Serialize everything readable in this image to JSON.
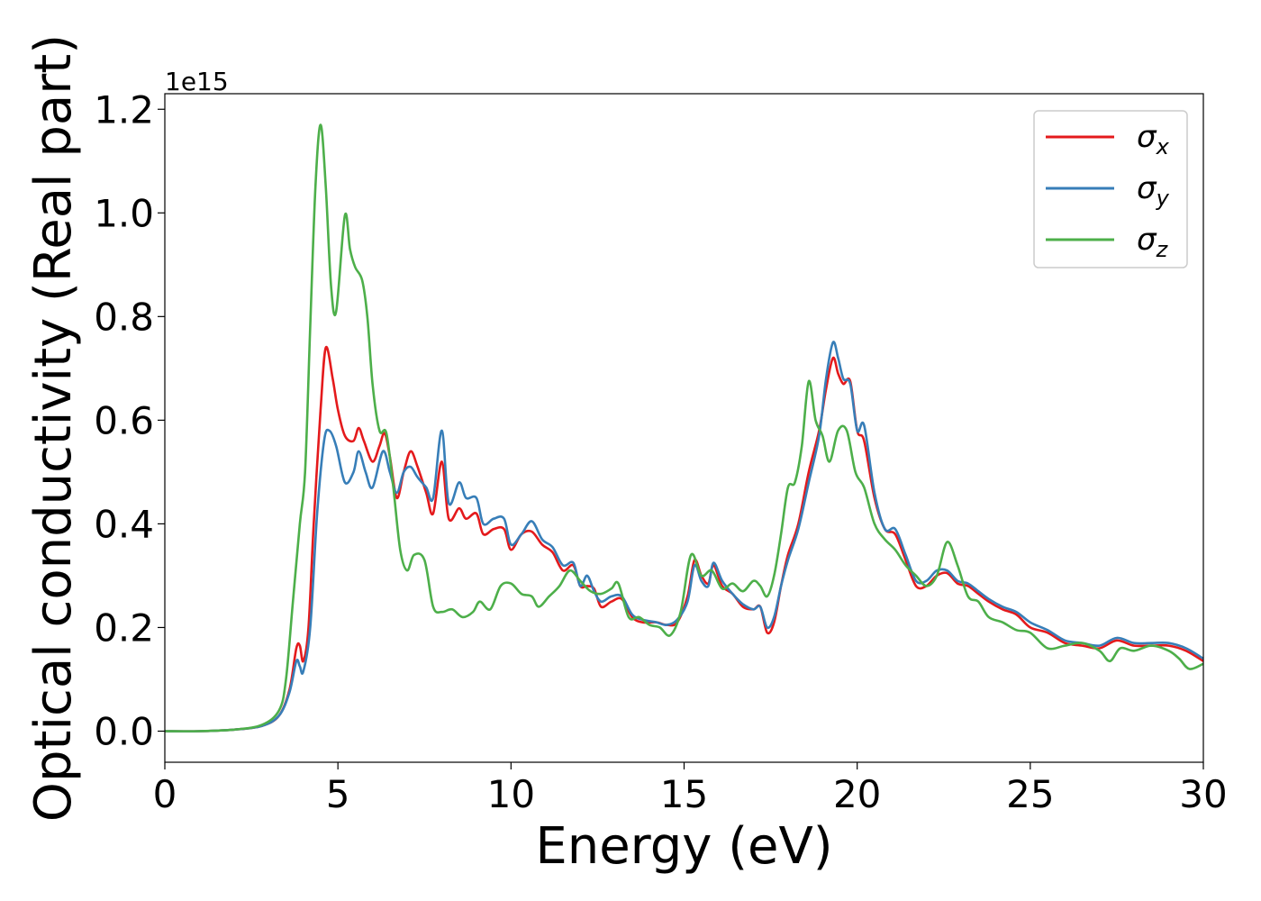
{
  "chart_data": {
    "type": "line",
    "title": "",
    "xlabel": "Energy (eV)",
    "ylabel": "Optical conductivity (Real part)",
    "y_offset_label": "1e15",
    "xlim": [
      0,
      30
    ],
    "ylim": [
      -0.06,
      1.23
    ],
    "x_ticks": [
      0,
      5,
      10,
      15,
      20,
      25,
      30
    ],
    "x_tick_labels": [
      "0",
      "5",
      "10",
      "15",
      "20",
      "25",
      "30"
    ],
    "y_ticks": [
      0.0,
      0.2,
      0.4,
      0.6,
      0.8,
      1.0,
      1.2
    ],
    "y_tick_labels": [
      "0.0",
      "0.2",
      "0.4",
      "0.6",
      "0.8",
      "1.0",
      "1.2"
    ],
    "grid": false,
    "legend_position": "top-right",
    "series": [
      {
        "name": "σx",
        "sym": "σ",
        "sub": "x",
        "color": "#e41a1c",
        "points": [
          [
            0,
            0
          ],
          [
            1,
            0
          ],
          [
            2,
            0.003
          ],
          [
            2.8,
            0.01
          ],
          [
            3.3,
            0.03
          ],
          [
            3.6,
            0.08
          ],
          [
            3.8,
            0.16
          ],
          [
            3.9,
            0.165
          ],
          [
            4.0,
            0.135
          ],
          [
            4.15,
            0.2
          ],
          [
            4.3,
            0.4
          ],
          [
            4.5,
            0.62
          ],
          [
            4.65,
            0.74
          ],
          [
            4.85,
            0.68
          ],
          [
            5.0,
            0.62
          ],
          [
            5.2,
            0.57
          ],
          [
            5.45,
            0.56
          ],
          [
            5.6,
            0.585
          ],
          [
            5.75,
            0.56
          ],
          [
            6.0,
            0.52
          ],
          [
            6.2,
            0.55
          ],
          [
            6.35,
            0.575
          ],
          [
            6.5,
            0.53
          ],
          [
            6.7,
            0.45
          ],
          [
            6.9,
            0.5
          ],
          [
            7.1,
            0.54
          ],
          [
            7.3,
            0.51
          ],
          [
            7.55,
            0.46
          ],
          [
            7.75,
            0.42
          ],
          [
            8.0,
            0.52
          ],
          [
            8.2,
            0.41
          ],
          [
            8.5,
            0.43
          ],
          [
            8.7,
            0.41
          ],
          [
            9.0,
            0.42
          ],
          [
            9.2,
            0.38
          ],
          [
            9.5,
            0.39
          ],
          [
            9.8,
            0.39
          ],
          [
            10.0,
            0.35
          ],
          [
            10.3,
            0.38
          ],
          [
            10.6,
            0.385
          ],
          [
            10.9,
            0.36
          ],
          [
            11.2,
            0.345
          ],
          [
            11.5,
            0.31
          ],
          [
            11.8,
            0.32
          ],
          [
            12.0,
            0.28
          ],
          [
            12.2,
            0.28
          ],
          [
            12.4,
            0.275
          ],
          [
            12.6,
            0.24
          ],
          [
            12.9,
            0.25
          ],
          [
            13.2,
            0.255
          ],
          [
            13.5,
            0.22
          ],
          [
            13.8,
            0.21
          ],
          [
            14.2,
            0.21
          ],
          [
            14.5,
            0.205
          ],
          [
            14.8,
            0.21
          ],
          [
            15.1,
            0.26
          ],
          [
            15.3,
            0.33
          ],
          [
            15.5,
            0.3
          ],
          [
            15.7,
            0.285
          ],
          [
            15.85,
            0.32
          ],
          [
            16.1,
            0.28
          ],
          [
            16.4,
            0.265
          ],
          [
            16.7,
            0.24
          ],
          [
            17.0,
            0.235
          ],
          [
            17.2,
            0.24
          ],
          [
            17.4,
            0.19
          ],
          [
            17.6,
            0.21
          ],
          [
            17.8,
            0.28
          ],
          [
            18.0,
            0.34
          ],
          [
            18.3,
            0.4
          ],
          [
            18.6,
            0.5
          ],
          [
            18.9,
            0.58
          ],
          [
            19.1,
            0.66
          ],
          [
            19.3,
            0.72
          ],
          [
            19.45,
            0.69
          ],
          [
            19.6,
            0.67
          ],
          [
            19.8,
            0.675
          ],
          [
            20.0,
            0.58
          ],
          [
            20.2,
            0.56
          ],
          [
            20.5,
            0.45
          ],
          [
            20.8,
            0.39
          ],
          [
            21.1,
            0.38
          ],
          [
            21.4,
            0.33
          ],
          [
            21.7,
            0.28
          ],
          [
            22.0,
            0.28
          ],
          [
            22.3,
            0.3
          ],
          [
            22.6,
            0.305
          ],
          [
            22.9,
            0.285
          ],
          [
            23.2,
            0.28
          ],
          [
            23.5,
            0.265
          ],
          [
            23.8,
            0.25
          ],
          [
            24.2,
            0.235
          ],
          [
            24.6,
            0.225
          ],
          [
            25.0,
            0.2
          ],
          [
            25.5,
            0.19
          ],
          [
            26.0,
            0.17
          ],
          [
            26.5,
            0.165
          ],
          [
            27.0,
            0.16
          ],
          [
            27.5,
            0.175
          ],
          [
            28.0,
            0.165
          ],
          [
            28.5,
            0.165
          ],
          [
            29.0,
            0.165
          ],
          [
            29.5,
            0.155
          ],
          [
            30,
            0.135
          ]
        ]
      },
      {
        "name": "σy",
        "sym": "σ",
        "sub": "y",
        "color": "#377eb8",
        "points": [
          [
            0,
            0
          ],
          [
            1,
            0
          ],
          [
            2,
            0.003
          ],
          [
            2.8,
            0.01
          ],
          [
            3.3,
            0.03
          ],
          [
            3.6,
            0.075
          ],
          [
            3.8,
            0.135
          ],
          [
            3.9,
            0.125
          ],
          [
            4.0,
            0.115
          ],
          [
            4.2,
            0.2
          ],
          [
            4.4,
            0.42
          ],
          [
            4.6,
            0.56
          ],
          [
            4.75,
            0.58
          ],
          [
            4.95,
            0.55
          ],
          [
            5.2,
            0.48
          ],
          [
            5.45,
            0.5
          ],
          [
            5.6,
            0.54
          ],
          [
            5.8,
            0.5
          ],
          [
            6.0,
            0.47
          ],
          [
            6.3,
            0.54
          ],
          [
            6.5,
            0.5
          ],
          [
            6.7,
            0.46
          ],
          [
            6.9,
            0.5
          ],
          [
            7.1,
            0.51
          ],
          [
            7.3,
            0.49
          ],
          [
            7.55,
            0.47
          ],
          [
            7.75,
            0.45
          ],
          [
            8.0,
            0.58
          ],
          [
            8.2,
            0.44
          ],
          [
            8.5,
            0.48
          ],
          [
            8.7,
            0.45
          ],
          [
            9.0,
            0.45
          ],
          [
            9.2,
            0.4
          ],
          [
            9.5,
            0.41
          ],
          [
            9.8,
            0.41
          ],
          [
            10.0,
            0.36
          ],
          [
            10.3,
            0.38
          ],
          [
            10.6,
            0.405
          ],
          [
            10.9,
            0.37
          ],
          [
            11.2,
            0.355
          ],
          [
            11.5,
            0.32
          ],
          [
            11.8,
            0.325
          ],
          [
            12.0,
            0.28
          ],
          [
            12.2,
            0.3
          ],
          [
            12.4,
            0.27
          ],
          [
            12.6,
            0.25
          ],
          [
            12.9,
            0.26
          ],
          [
            13.2,
            0.26
          ],
          [
            13.5,
            0.225
          ],
          [
            13.8,
            0.215
          ],
          [
            14.2,
            0.21
          ],
          [
            14.5,
            0.205
          ],
          [
            14.8,
            0.215
          ],
          [
            15.1,
            0.25
          ],
          [
            15.3,
            0.32
          ],
          [
            15.5,
            0.29
          ],
          [
            15.7,
            0.28
          ],
          [
            15.85,
            0.325
          ],
          [
            16.1,
            0.29
          ],
          [
            16.4,
            0.265
          ],
          [
            16.7,
            0.245
          ],
          [
            17.0,
            0.235
          ],
          [
            17.2,
            0.24
          ],
          [
            17.4,
            0.2
          ],
          [
            17.6,
            0.22
          ],
          [
            17.8,
            0.28
          ],
          [
            18.0,
            0.33
          ],
          [
            18.3,
            0.39
          ],
          [
            18.6,
            0.48
          ],
          [
            18.9,
            0.57
          ],
          [
            19.1,
            0.68
          ],
          [
            19.3,
            0.75
          ],
          [
            19.45,
            0.72
          ],
          [
            19.6,
            0.68
          ],
          [
            19.8,
            0.67
          ],
          [
            20.0,
            0.58
          ],
          [
            20.2,
            0.59
          ],
          [
            20.5,
            0.46
          ],
          [
            20.8,
            0.39
          ],
          [
            21.1,
            0.39
          ],
          [
            21.4,
            0.34
          ],
          [
            21.7,
            0.29
          ],
          [
            22.0,
            0.29
          ],
          [
            22.3,
            0.31
          ],
          [
            22.6,
            0.31
          ],
          [
            22.9,
            0.29
          ],
          [
            23.2,
            0.285
          ],
          [
            23.5,
            0.27
          ],
          [
            23.8,
            0.255
          ],
          [
            24.2,
            0.24
          ],
          [
            24.6,
            0.23
          ],
          [
            25.0,
            0.21
          ],
          [
            25.5,
            0.195
          ],
          [
            26.0,
            0.175
          ],
          [
            26.5,
            0.17
          ],
          [
            27.0,
            0.165
          ],
          [
            27.5,
            0.18
          ],
          [
            28.0,
            0.17
          ],
          [
            28.5,
            0.17
          ],
          [
            29.0,
            0.17
          ],
          [
            29.5,
            0.16
          ],
          [
            30,
            0.14
          ]
        ]
      },
      {
        "name": "σz",
        "sym": "σ",
        "sub": "z",
        "color": "#4daf4a",
        "points": [
          [
            0,
            0
          ],
          [
            1,
            0
          ],
          [
            2,
            0.003
          ],
          [
            2.8,
            0.012
          ],
          [
            3.3,
            0.04
          ],
          [
            3.5,
            0.1
          ],
          [
            3.7,
            0.25
          ],
          [
            3.9,
            0.4
          ],
          [
            4.05,
            0.5
          ],
          [
            4.2,
            0.78
          ],
          [
            4.35,
            1.05
          ],
          [
            4.5,
            1.17
          ],
          [
            4.65,
            1.05
          ],
          [
            4.8,
            0.86
          ],
          [
            4.95,
            0.81
          ],
          [
            5.2,
            0.995
          ],
          [
            5.35,
            0.93
          ],
          [
            5.5,
            0.895
          ],
          [
            5.7,
            0.87
          ],
          [
            5.85,
            0.8
          ],
          [
            6.0,
            0.67
          ],
          [
            6.2,
            0.58
          ],
          [
            6.4,
            0.575
          ],
          [
            6.6,
            0.47
          ],
          [
            6.8,
            0.35
          ],
          [
            7.0,
            0.31
          ],
          [
            7.2,
            0.34
          ],
          [
            7.5,
            0.33
          ],
          [
            7.75,
            0.24
          ],
          [
            8.0,
            0.23
          ],
          [
            8.3,
            0.235
          ],
          [
            8.6,
            0.22
          ],
          [
            8.9,
            0.23
          ],
          [
            9.1,
            0.25
          ],
          [
            9.4,
            0.235
          ],
          [
            9.7,
            0.28
          ],
          [
            10.0,
            0.285
          ],
          [
            10.3,
            0.265
          ],
          [
            10.6,
            0.26
          ],
          [
            10.8,
            0.24
          ],
          [
            11.1,
            0.26
          ],
          [
            11.4,
            0.28
          ],
          [
            11.7,
            0.31
          ],
          [
            12.0,
            0.29
          ],
          [
            12.3,
            0.27
          ],
          [
            12.6,
            0.265
          ],
          [
            12.9,
            0.275
          ],
          [
            13.1,
            0.285
          ],
          [
            13.4,
            0.22
          ],
          [
            13.7,
            0.22
          ],
          [
            14.0,
            0.205
          ],
          [
            14.3,
            0.2
          ],
          [
            14.6,
            0.185
          ],
          [
            14.9,
            0.23
          ],
          [
            15.2,
            0.34
          ],
          [
            15.5,
            0.3
          ],
          [
            15.8,
            0.31
          ],
          [
            16.1,
            0.275
          ],
          [
            16.4,
            0.285
          ],
          [
            16.7,
            0.27
          ],
          [
            17.0,
            0.29
          ],
          [
            17.2,
            0.28
          ],
          [
            17.4,
            0.26
          ],
          [
            17.6,
            0.3
          ],
          [
            17.8,
            0.38
          ],
          [
            18.0,
            0.47
          ],
          [
            18.2,
            0.48
          ],
          [
            18.4,
            0.55
          ],
          [
            18.6,
            0.675
          ],
          [
            18.8,
            0.6
          ],
          [
            19.0,
            0.57
          ],
          [
            19.2,
            0.52
          ],
          [
            19.45,
            0.58
          ],
          [
            19.7,
            0.58
          ],
          [
            19.95,
            0.5
          ],
          [
            20.2,
            0.47
          ],
          [
            20.5,
            0.4
          ],
          [
            20.8,
            0.37
          ],
          [
            21.1,
            0.35
          ],
          [
            21.4,
            0.32
          ],
          [
            21.7,
            0.3
          ],
          [
            22.0,
            0.28
          ],
          [
            22.3,
            0.3
          ],
          [
            22.6,
            0.365
          ],
          [
            22.9,
            0.32
          ],
          [
            23.2,
            0.26
          ],
          [
            23.5,
            0.25
          ],
          [
            23.8,
            0.22
          ],
          [
            24.2,
            0.21
          ],
          [
            24.6,
            0.195
          ],
          [
            25.0,
            0.19
          ],
          [
            25.5,
            0.16
          ],
          [
            26.0,
            0.165
          ],
          [
            26.5,
            0.17
          ],
          [
            27.0,
            0.155
          ],
          [
            27.3,
            0.135
          ],
          [
            27.6,
            0.16
          ],
          [
            28.0,
            0.155
          ],
          [
            28.5,
            0.165
          ],
          [
            29.0,
            0.155
          ],
          [
            29.3,
            0.14
          ],
          [
            29.6,
            0.12
          ],
          [
            30,
            0.13
          ]
        ]
      }
    ]
  }
}
